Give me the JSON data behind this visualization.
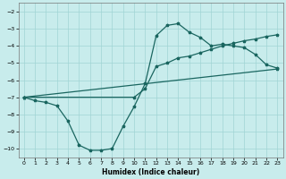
{
  "title": "",
  "xlabel": "Humidex (Indice chaleur)",
  "xlim": [
    -0.5,
    23.5
  ],
  "ylim": [
    -10.5,
    -1.5
  ],
  "yticks": [
    -10,
    -9,
    -8,
    -7,
    -6,
    -5,
    -4,
    -3,
    -2
  ],
  "xticks": [
    0,
    1,
    2,
    3,
    4,
    5,
    6,
    7,
    8,
    9,
    10,
    11,
    12,
    13,
    14,
    15,
    16,
    17,
    18,
    19,
    20,
    21,
    22,
    23
  ],
  "bg_color": "#c8ecec",
  "grid_color": "#a0d4d4",
  "line_color": "#1a6660",
  "line1_x": [
    0,
    1,
    2,
    3,
    4,
    5,
    6,
    7,
    8,
    9,
    10,
    11,
    12,
    13,
    14,
    15,
    16,
    17,
    18,
    19,
    20,
    21,
    22,
    23
  ],
  "line1_y": [
    -7.0,
    -7.2,
    -7.3,
    -7.5,
    -8.4,
    -9.8,
    -10.1,
    -10.1,
    -10.0,
    -8.7,
    -7.55,
    -6.2,
    -3.4,
    -2.8,
    -2.7,
    -3.2,
    -3.5,
    -4.0,
    -3.9,
    -4.0,
    -4.1,
    -4.5,
    -5.1,
    -5.3
  ],
  "line2_x": [
    0,
    23
  ],
  "line2_y": [
    -7.0,
    -5.35
  ],
  "line3_x": [
    0,
    10,
    11,
    12,
    13,
    14,
    15,
    16,
    17,
    18,
    19,
    20,
    21,
    22,
    23
  ],
  "line3_y": [
    -7.0,
    -7.0,
    -6.5,
    -5.2,
    -5.0,
    -4.7,
    -4.6,
    -4.4,
    -4.2,
    -4.0,
    -3.85,
    -3.7,
    -3.6,
    -3.45,
    -3.35
  ]
}
